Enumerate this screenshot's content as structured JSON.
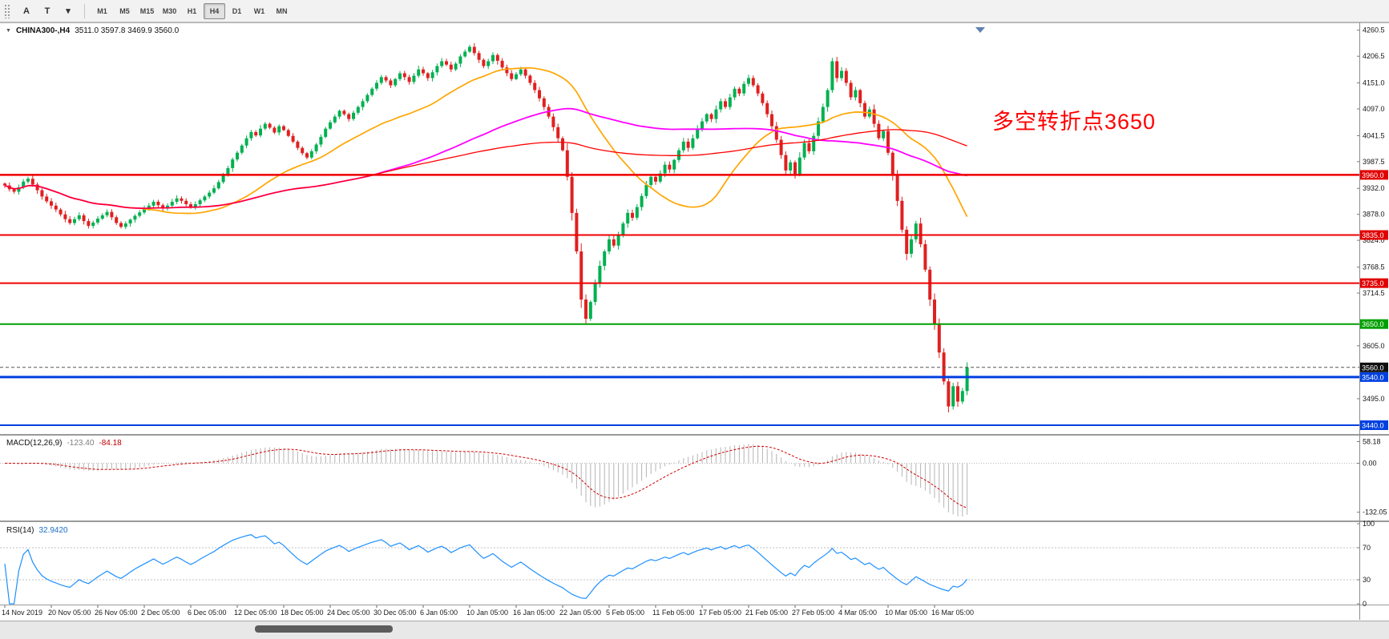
{
  "toolbar": {
    "icon_buttons": [
      {
        "name": "text-annotation-icon",
        "glyph": "A"
      },
      {
        "name": "text-box-icon",
        "glyph": "T"
      },
      {
        "name": "graphic-objects-dropdown-icon",
        "glyph": "▾"
      }
    ],
    "timeframes": [
      "M1",
      "M5",
      "M15",
      "M30",
      "H1",
      "H4",
      "D1",
      "W1",
      "MN"
    ],
    "active_timeframe": "H4"
  },
  "chart_data": {
    "type": "candlestick",
    "symbol": "CHINA300-,H4",
    "ohlc_display": "3511.0 3597.8 3469.9 3560.0",
    "annotation": {
      "text": "多空转折点3650",
      "color": "#ff0000"
    },
    "ylim": [
      3425,
      4270
    ],
    "y_ticks": [
      4260.5,
      4206.5,
      4151.0,
      4097.0,
      4041.5,
      3987.5,
      3932.0,
      3878.0,
      3824.0,
      3768.5,
      3714.5,
      3605.0,
      3495.0
    ],
    "horizontal_levels": [
      {
        "value": 3960.0,
        "label": "3960.0",
        "color": "#f00000",
        "badge": "#e00000",
        "width": 2.5
      },
      {
        "value": 3835.0,
        "label": "3835.0",
        "color": "#f00000",
        "badge": "#e00000",
        "width": 2
      },
      {
        "value": 3735.0,
        "label": "3735.0",
        "color": "#f00000",
        "badge": "#e00000",
        "width": 2
      },
      {
        "value": 3650.0,
        "label": "3650.0",
        "color": "#00a000",
        "badge": "#00a000",
        "width": 2
      },
      {
        "value": 3540.0,
        "label": "3540.0",
        "color": "#0040e0",
        "badge": "#0040e0",
        "width": 3
      },
      {
        "value": 3440.0,
        "label": "3440.0",
        "color": "#0040e0",
        "badge": "#0040e0",
        "width": 2
      }
    ],
    "last_price": 3560.0,
    "last_price_label": "3560.0",
    "last_price_badge": "#101010",
    "up_color": "#00b050",
    "down_color": "#e02020",
    "moving_averages": [
      {
        "name": "ma-fast",
        "color": "#ffa500",
        "period": 30,
        "width": 1.7
      },
      {
        "name": "ma-mid",
        "color": "#ff00ff",
        "period": 80,
        "width": 1.8
      },
      {
        "name": "ma-slow",
        "color": "#ff0000",
        "period": 150,
        "width": 1.3
      }
    ],
    "label_every": 10,
    "x_labels": [
      "14 Nov 2019",
      "20 Nov 05:00",
      "26 Nov 05:00",
      "2 Dec 05:00",
      "6 Dec 05:00",
      "12 Dec 05:00",
      "18 Dec 05:00",
      "24 Dec 05:00",
      "30 Dec 05:00",
      "6 Jan 05:00",
      "10 Jan 05:00",
      "16 Jan 05:00",
      "22 Jan 05:00",
      "5 Feb 05:00",
      "11 Feb 05:00",
      "17 Feb 05:00",
      "21 Feb 05:00",
      "27 Feb 05:00",
      "4 Mar 05:00",
      "10 Mar 05:00",
      "16 Mar 05:00"
    ],
    "closes": [
      3938,
      3930,
      3925,
      3934,
      3946,
      3952,
      3940,
      3928,
      3915,
      3905,
      3896,
      3888,
      3878,
      3868,
      3860,
      3868,
      3876,
      3864,
      3854,
      3861,
      3869,
      3876,
      3883,
      3872,
      3860,
      3852,
      3859,
      3867,
      3875,
      3882,
      3889,
      3896,
      3904,
      3897,
      3890,
      3896,
      3904,
      3911,
      3906,
      3899,
      3893,
      3899,
      3907,
      3915,
      3923,
      3932,
      3945,
      3959,
      3974,
      3992,
      4006,
      4021,
      4036,
      4049,
      4042,
      4056,
      4066,
      4058,
      4048,
      4061,
      4053,
      4041,
      4029,
      4016,
      4005,
      3996,
      4009,
      4023,
      4039,
      4056,
      4069,
      4081,
      4093,
      4086,
      4076,
      4089,
      4101,
      4113,
      4126,
      4139,
      4151,
      4163,
      4156,
      4146,
      4159,
      4171,
      4163,
      4153,
      4166,
      4179,
      4171,
      4161,
      4173,
      4186,
      4196,
      4189,
      4179,
      4191,
      4206,
      4216,
      4226,
      4213,
      4199,
      4186,
      4196,
      4209,
      4197,
      4183,
      4171,
      4159,
      4169,
      4179,
      4166,
      4151,
      4136,
      4119,
      4101,
      4081,
      4059,
      4036,
      4011,
      3956,
      3881,
      3801,
      3701,
      3661,
      3696,
      3736,
      3771,
      3801,
      3826,
      3813,
      3836,
      3859,
      3881,
      3871,
      3893,
      3916,
      3939,
      3956,
      3946,
      3963,
      3981,
      3971,
      3991,
      4011,
      4029,
      4016,
      4036,
      4056,
      4071,
      4086,
      4076,
      4096,
      4113,
      4101,
      4121,
      4139,
      4129,
      4149,
      4161,
      4146,
      4129,
      4109,
      4086,
      4061,
      4033,
      4001,
      3969,
      3986,
      3961,
      3996,
      4026,
      4009,
      4041,
      4071,
      4101,
      4136,
      4196,
      4161,
      4176,
      4151,
      4121,
      4136,
      4109,
      4081,
      4096,
      4066,
      4036,
      4051,
      4006,
      3961,
      3906,
      3846,
      3796,
      3826,
      3859,
      3816,
      3763,
      3701,
      3649,
      3591,
      3531,
      3479,
      3521,
      3489,
      3511,
      3560
    ],
    "indicators": [
      {
        "type": "macd",
        "label": "MACD(12,26,9)",
        "values": [
          "-123.40",
          "-84.18"
        ],
        "params": [
          12,
          26,
          9
        ],
        "ylim": [
          -150,
          70
        ],
        "ticks": [
          58.18,
          0,
          -132.05
        ],
        "tick_labels": [
          "58.18",
          "0.00",
          "-132.05"
        ],
        "colors": {
          "hist": "#b4b4b4",
          "signal": "#d00000"
        }
      },
      {
        "type": "rsi",
        "label": "RSI(14)",
        "value": "32.9420",
        "period": 14,
        "ylim": [
          0,
          100
        ],
        "ticks": [
          100,
          70,
          30,
          0
        ],
        "tick_labels": [
          "100",
          "70",
          "30",
          "0"
        ],
        "levels": [
          70,
          30
        ],
        "color": "#1e90ff"
      }
    ]
  }
}
